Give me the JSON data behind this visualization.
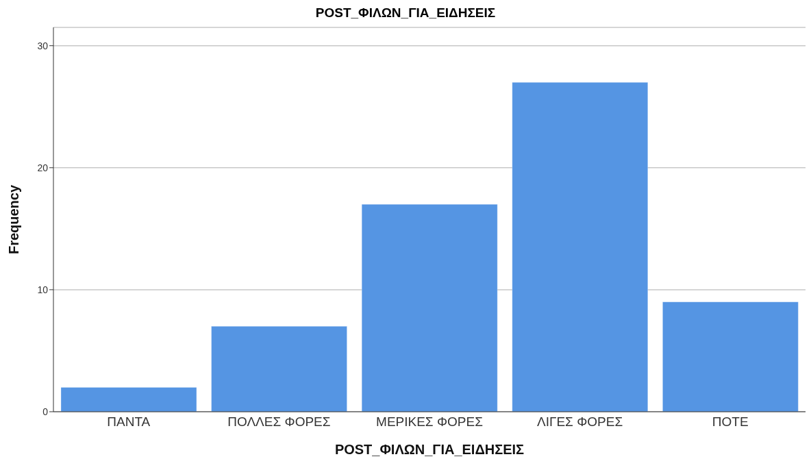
{
  "chart_data": {
    "type": "bar",
    "title": "POST_ΦΙΛΩΝ_ΓΙΑ_ΕΙΔΗΣΕΙΣ",
    "xlabel": "POST_ΦΙΛΩΝ_ΓΙΑ_ΕΙΔΗΣΕΙΣ",
    "ylabel": "Frequency",
    "categories": [
      "ΠΑΝΤΑ",
      "ΠΟΛΛΕΣ ΦΟΡΕΣ",
      "ΜΕΡΙΚΕΣ ΦΟΡΕΣ",
      "ΛΙΓΕΣ ΦΟΡΕΣ",
      "ΠΟΤΕ"
    ],
    "values": [
      2,
      7,
      17,
      27,
      9
    ],
    "color": "#5595e3",
    "ylim": [
      0,
      31.5
    ],
    "yticks": [
      0,
      10,
      20,
      30
    ],
    "grid": "y",
    "legend": false
  }
}
